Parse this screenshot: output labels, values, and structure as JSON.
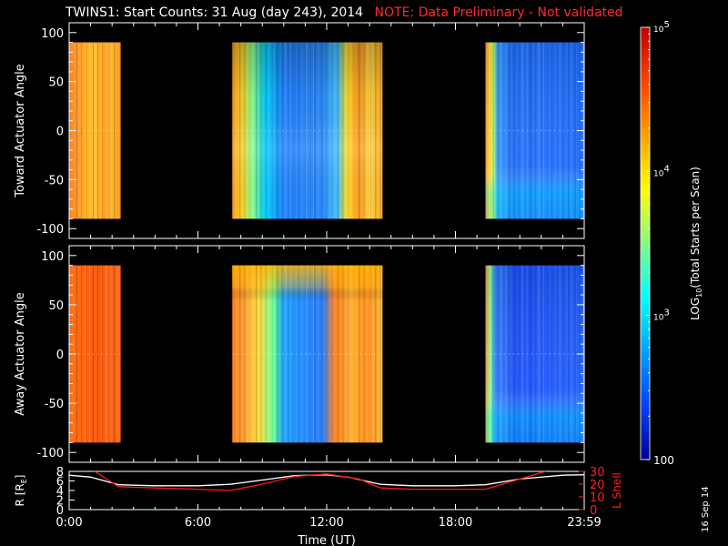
{
  "title": "TWINS1: Start Counts: 31 Aug (day 243), 2014",
  "note": "NOTE: Data Preliminary - Not validated",
  "date_stamp": "16 Sep 14",
  "chart_data": [
    {
      "type": "heatmap",
      "panel": "toward",
      "ylabel": "Toward Actuator Angle",
      "yticks": [
        100,
        50,
        0,
        -50,
        -100
      ],
      "ylim": [
        -110,
        110
      ],
      "xlim": [
        0,
        24
      ],
      "data_y_range": [
        -90,
        90
      ],
      "scale": "log",
      "data_blocks": [
        {
          "x_start": 0.0,
          "x_end": 2.4,
          "level": "orange-red (~10^4.5)"
        },
        {
          "x_start": 7.6,
          "x_end": 14.6,
          "level": "orange/yellow early, blue-cyan (~10^3) middle, orange/yellow late"
        },
        {
          "x_start": 19.4,
          "x_end": 24.0,
          "level": "orange edge then blue (~10^2.8)"
        }
      ]
    },
    {
      "type": "heatmap",
      "panel": "away",
      "ylabel": "Away Actuator Angle",
      "yticks": [
        100,
        50,
        0,
        -50,
        -100
      ],
      "ylim": [
        -110,
        110
      ],
      "xlim": [
        0,
        24
      ],
      "data_y_range": [
        -90,
        90
      ],
      "scale": "log",
      "data_blocks": [
        {
          "x_start": 0.0,
          "x_end": 2.4,
          "level": "orange-red (~10^4.6)"
        },
        {
          "x_start": 7.6,
          "x_end": 14.6,
          "level": "orange/yellow early, blue (~10^3) middle, orange/yellow late"
        },
        {
          "x_start": 19.4,
          "x_end": 24.0,
          "level": "orange edge then blue (~10^2.8)"
        }
      ]
    },
    {
      "type": "line",
      "panel": "orbit",
      "ylabel": "R [R",
      "ylabel_sub": "E",
      "ylabel_end": "]",
      "ylim": [
        0,
        8
      ],
      "yticks": [
        0,
        2,
        4,
        6,
        8
      ],
      "y2label": "L Shell",
      "y2lim": [
        0,
        30
      ],
      "y2ticks": [
        0,
        10,
        20,
        30
      ],
      "xlim": [
        0,
        24
      ],
      "xticks": [
        "0:00",
        "6:00",
        "12:00",
        "18:00",
        "23:59"
      ],
      "xtick_values": [
        0,
        6,
        12,
        18,
        24
      ],
      "xlabel": "Time (UT)",
      "series": [
        {
          "axis": "left",
          "color": "#ffffff",
          "x": [
            0,
            1,
            2.3,
            4,
            6,
            7.5,
            9,
            10.5,
            12,
            13,
            14.5,
            16,
            18,
            19.4,
            21,
            23,
            24
          ],
          "y": [
            7.2,
            6.8,
            5.2,
            5.0,
            5.0,
            5.3,
            6.2,
            7.1,
            7.3,
            6.8,
            5.3,
            5.0,
            5.0,
            5.2,
            6.4,
            7.2,
            7.3
          ]
        },
        {
          "axis": "right",
          "color": "#ff1a1a",
          "x": [
            1.2,
            2.3,
            4,
            6,
            7.5,
            9,
            10.5,
            12,
            13.5,
            14.5,
            16,
            18,
            19.4,
            21,
            22.2
          ],
          "y": [
            30,
            18,
            17,
            16,
            15,
            20,
            26,
            28,
            24,
            17,
            16,
            16,
            16,
            24,
            30
          ]
        }
      ]
    }
  ],
  "colorbar": {
    "label_pre": "LOG",
    "label_sub": "10",
    "label_post": "(Total Starts per Scan)",
    "ticks": [
      {
        "base": "10",
        "exp": "5",
        "value": 5
      },
      {
        "base": "10",
        "exp": "4",
        "value": 4
      },
      {
        "base": "10",
        "exp": "3",
        "value": 3
      },
      {
        "base": "100",
        "exp": "",
        "value": 2
      }
    ],
    "range": [
      2,
      5
    ],
    "colors": [
      "#00008f",
      "#0040ff",
      "#00a0ff",
      "#00ffff",
      "#7fff7f",
      "#ffff00",
      "#ff9f00",
      "#ff4000",
      "#c00000"
    ]
  }
}
